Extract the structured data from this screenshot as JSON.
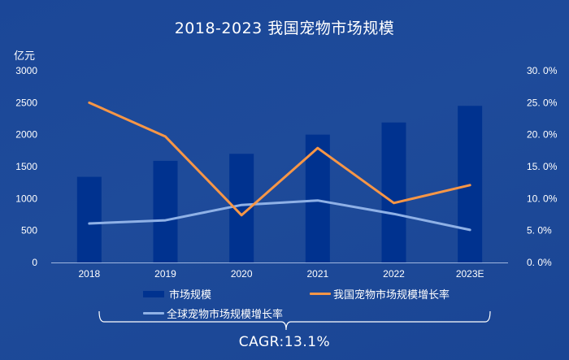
{
  "title": "2018-2023 我国宠物市场规模",
  "unit_label": "亿元",
  "legend": {
    "bar": "市场规模",
    "line_domestic": "我国宠物市场规模增长率",
    "line_global": "全球宠物市场规模增长率"
  },
  "annotation": "CAGR:13.1%",
  "colors": {
    "background": "#1c4797",
    "bar": "#00328f",
    "line_domestic": "#f79646",
    "line_global": "#8fb1e6",
    "axis": "#9fb6e0"
  },
  "chart_data": {
    "type": "bar+line",
    "title": "2018-2023 我国宠物市场规模",
    "categories": [
      "2018",
      "2019",
      "2020",
      "2021",
      "2022",
      "2023E"
    ],
    "series": [
      {
        "name": "市场规模",
        "type": "bar",
        "axis": "left",
        "values": [
          1340,
          1590,
          1700,
          2000,
          2190,
          2450
        ]
      },
      {
        "name": "我国宠物市场规模增长率",
        "type": "line",
        "axis": "right",
        "values": [
          25.0,
          19.7,
          7.4,
          17.9,
          9.3,
          12.1
        ]
      },
      {
        "name": "全球宠物市场规模增长率",
        "type": "line",
        "axis": "right",
        "values": [
          6.1,
          6.6,
          9.0,
          9.7,
          7.6,
          5.1
        ]
      }
    ],
    "ylabel": "亿元",
    "ylim": [
      0,
      3000
    ],
    "yticks": [
      "0",
      "500",
      "1000",
      "1500",
      "2000",
      "2500",
      "3000"
    ],
    "y2lim": [
      0,
      30
    ],
    "y2ticks": [
      "0.0%",
      "5.0%",
      "10.0%",
      "15.0%",
      "20.0%",
      "25.0%",
      "30.0%"
    ],
    "grid": false,
    "legend_position": "bottom",
    "annotations": [
      "CAGR:13.1%"
    ]
  }
}
